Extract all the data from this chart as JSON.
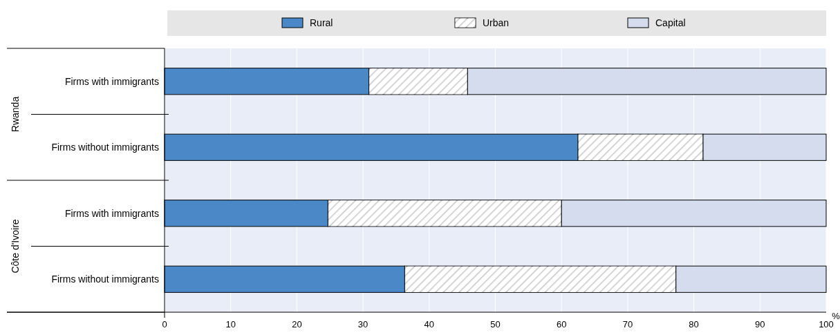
{
  "chart_data": {
    "type": "bar",
    "orientation": "horizontal",
    "stacked": true,
    "categories": [
      "Firms with immigrants",
      "Firms without immigrants",
      "Firms with immigrants",
      "Firms without immigrants"
    ],
    "series": [
      {
        "name": "Rural",
        "color": "#4a88c8",
        "values": [
          30.9,
          62.5,
          24.7,
          36.3
        ]
      },
      {
        "name": "Urban",
        "color": "#c8c8c8",
        "values": [
          14.9,
          18.9,
          35.3,
          41.0
        ]
      },
      {
        "name": "Capital",
        "color": "#d4dcee",
        "values": [
          54.2,
          18.6,
          40.0,
          22.7
        ]
      }
    ],
    "xlim": [
      0,
      100
    ],
    "xticks": [
      0,
      10,
      20,
      30,
      40,
      50,
      60,
      70,
      80,
      90,
      100
    ],
    "xlabel": "%",
    "grid": "x",
    "legend": "top",
    "annotations": [
      "Rwanda",
      "Côte d'Ivoire"
    ]
  }
}
